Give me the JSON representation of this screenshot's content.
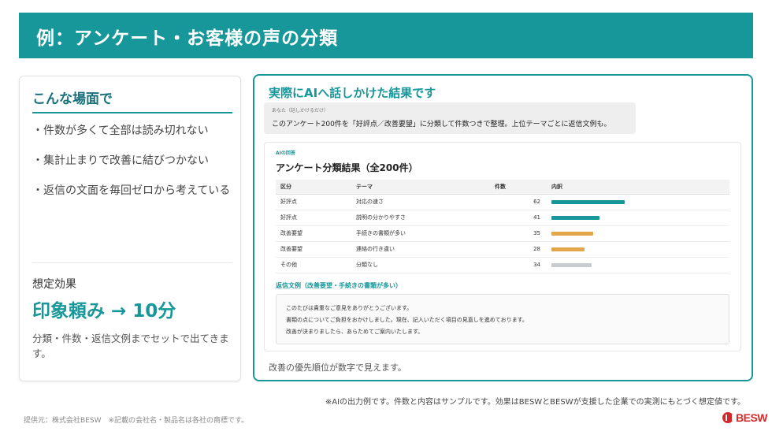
{
  "header": {
    "title": "例：アンケート・お客様の声の分類"
  },
  "left_card": {
    "title": "こんな場面で",
    "pains": [
      "・件数が多くて全部は読み切れない",
      "・集計止まりで改善に結びつかない",
      "・返信の文面を毎回ゼロから考えている"
    ],
    "effect_label": "想定効果",
    "effect_value": "印象頼み → 10分",
    "effect_desc": "分類・件数・返信文例までセットで出てきます。"
  },
  "right_card": {
    "title": "実際にAIへ話しかけた結果です",
    "prompt_label": "あなた（話しかけるだけ）",
    "prompt_text": "このアンケート200件を「好評点／改善要望」に分類して件数つきで整理。上位テーマごとに返信文例も。",
    "answer_label": "AIの回答",
    "answer_title": "アンケート分類結果（全200件）",
    "table": {
      "headers": [
        "区分",
        "テーマ",
        "件数",
        "内訳"
      ],
      "rows": [
        {
          "category": "好評点",
          "theme": "対応の速さ",
          "count": "62",
          "share": 0.62,
          "color": "#17979a"
        },
        {
          "category": "好評点",
          "theme": "説明の分かりやすさ",
          "count": "41",
          "share": 0.41,
          "color": "#17979a"
        },
        {
          "category": "改善要望",
          "theme": "手続きの書類が多い",
          "count": "35",
          "share": 0.35,
          "color": "#e3a64a"
        },
        {
          "category": "改善要望",
          "theme": "連絡の行き違い",
          "count": "28",
          "share": 0.28,
          "color": "#e3a64a"
        },
        {
          "category": "その他",
          "theme": "分類なし",
          "count": "34",
          "share": 0.34,
          "color": "#c8ccd0"
        }
      ]
    },
    "reply_label": "返信文例（改善要望・手続きの書類が多い）",
    "reply_lines": [
      "このたびは貴重なご意見をありがとうございます。",
      "書類の点についてご負担をおかけしました。現在、記入いただく項目の見直しを進めております。",
      "改善が決まりましたら、あらためてご案内いたします。"
    ],
    "caption": "改善の優先順位が数字で見えます。"
  },
  "disclaimer": "※AIの出力例です。件数と内容はサンプルです。効果はBESWとBESWが支援した企業での実測にもとづく想定値です。",
  "footer": "提供元：株式会社BESW　※記載の会社名・製品名は各社の商標です。",
  "logo": {
    "text": "BESW",
    "color": "#d62828"
  },
  "colors": {
    "accent": "#17979a",
    "warning": "#e3a64a",
    "neutral": "#c8ccd0"
  }
}
